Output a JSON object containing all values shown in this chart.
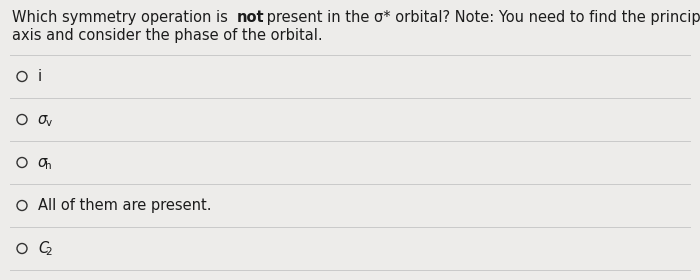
{
  "bg_color": "#edecea",
  "text_color": "#1c1c1c",
  "line_color": "#c9c9c9",
  "circle_color": "#333333",
  "q_part1": "Which symmetry operation is ",
  "q_bold": "not",
  "q_part2": " present in the σ* orbital? Note: You need to find the principle",
  "q_line2": "axis and consider the phase of the orbital.",
  "options_main": [
    "i",
    "σ",
    "σ",
    "All of them are present.",
    "C"
  ],
  "options_sub": [
    null,
    "v",
    "h",
    null,
    "2"
  ],
  "font_size": 10.5,
  "sub_font_size": 7.5
}
